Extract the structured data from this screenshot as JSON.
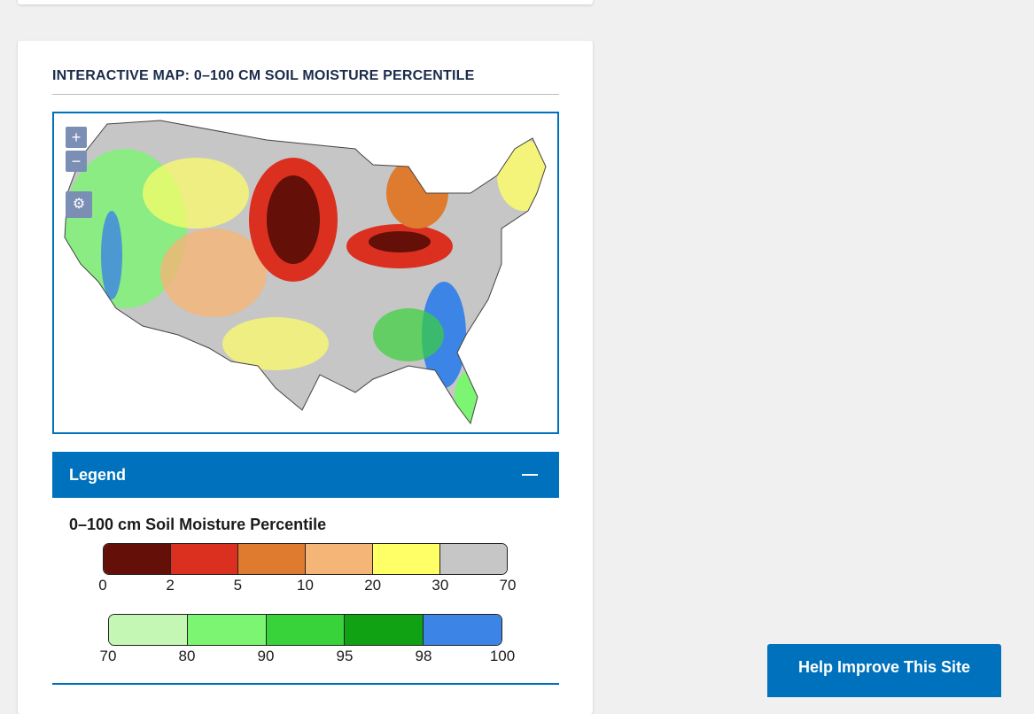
{
  "map": {
    "title": "INTERACTIVE MAP: 0–100 CM SOIL MOISTURE PERCENTILE",
    "zoom_in": "+",
    "zoom_out": "−",
    "download_icon": "gear-download-icon"
  },
  "legend": {
    "header": "Legend",
    "title": "0–100 cm Soil Moisture Percentile",
    "dry_colors": [
      "#640f08",
      "#db3020",
      "#de7b2f",
      "#f5b577",
      "#ffff66",
      "#c6c6c6"
    ],
    "dry_ticks": [
      "0",
      "2",
      "5",
      "10",
      "20",
      "30",
      "70"
    ],
    "wet_colors": [
      "#c4f7b4",
      "#7bf572",
      "#38d23b",
      "#10a213",
      "#3c84e6"
    ],
    "wet_ticks": [
      "70",
      "80",
      "90",
      "95",
      "98",
      "100"
    ]
  },
  "help": {
    "label": "Help Improve This Site"
  }
}
